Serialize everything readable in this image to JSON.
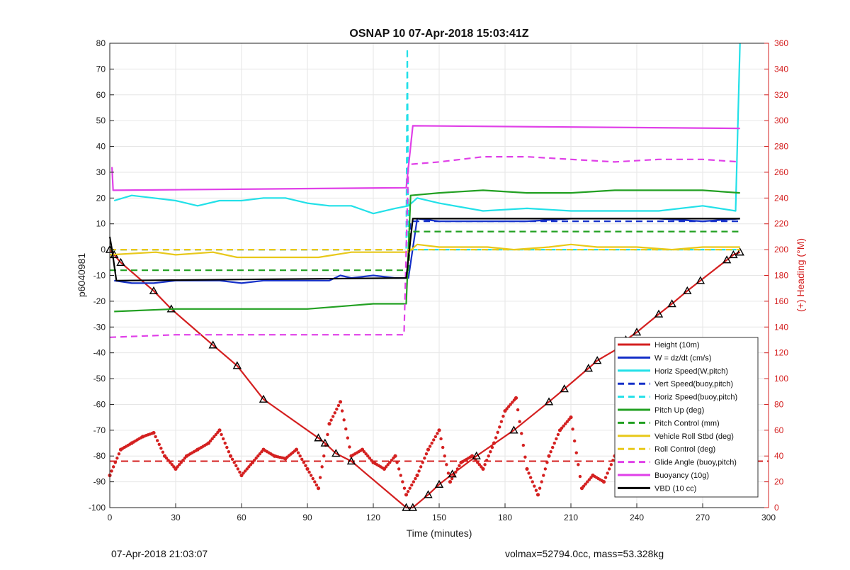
{
  "footer": {
    "left": "07-Apr-2018 21:03:07",
    "right": "volmax=52794.0cc, mass=53.328kg"
  },
  "chart_data": {
    "type": "line",
    "title": "OSNAP 10 07-Apr-2018 15:03:41Z",
    "xlabel": "Time (minutes)",
    "ylabel": "p6040981",
    "ylabel_right": "(+) Heading (°M)",
    "xlim": [
      0,
      300
    ],
    "ylim": [
      -100,
      80
    ],
    "ylim_right": [
      0,
      360
    ],
    "xticks": [
      0,
      30,
      60,
      90,
      120,
      150,
      180,
      210,
      240,
      270,
      300
    ],
    "yticks": [
      -100,
      -90,
      -80,
      -70,
      -60,
      -50,
      -40,
      -30,
      -20,
      -10,
      0,
      10,
      20,
      30,
      40,
      50,
      60,
      70,
      80
    ],
    "yticks_right": [
      0,
      20,
      40,
      60,
      80,
      100,
      120,
      140,
      160,
      180,
      200,
      220,
      240,
      260,
      280,
      300,
      320,
      340,
      360
    ],
    "grid": true,
    "legend_position": "bottom-right",
    "series": [
      {
        "name": "Height (10m)",
        "color": "#d42020",
        "style": "solid",
        "markers": "triangles",
        "x": [
          0,
          2,
          5,
          20,
          28,
          47,
          58,
          70,
          95,
          98,
          103,
          110,
          135,
          138,
          145,
          150,
          156,
          167,
          184,
          200,
          207,
          218,
          222,
          232,
          235,
          240,
          250,
          256,
          263,
          269,
          281,
          284,
          287
        ],
        "y": [
          0,
          -2,
          -5,
          -16,
          -23,
          -37,
          -45,
          -58,
          -73,
          -75,
          -79,
          -82,
          -100,
          -100,
          -95,
          -91,
          -87,
          -80,
          -70,
          -59,
          -54,
          -46,
          -43,
          -38,
          -35,
          -32,
          -25,
          -21,
          -16,
          -12,
          -4,
          -2,
          -1
        ]
      },
      {
        "name": "W = dz/dt (cm/s)",
        "color": "#1530c8",
        "style": "solid",
        "x": [
          2,
          10,
          20,
          30,
          40,
          50,
          60,
          70,
          80,
          90,
          100,
          105,
          110,
          120,
          130,
          136,
          140,
          150,
          170,
          190,
          210,
          230,
          250,
          270,
          287
        ],
        "y": [
          -12,
          -13,
          -13,
          -12,
          -12,
          -12,
          -13,
          -12,
          -12,
          -12,
          -12,
          -10,
          -11,
          -10,
          -11,
          -11,
          12,
          11,
          11,
          11,
          12,
          12,
          12,
          11,
          12
        ]
      },
      {
        "name": "Horiz Speed(W,pitch)",
        "color": "#22e0e8",
        "style": "solid",
        "x": [
          2,
          10,
          20,
          30,
          40,
          50,
          60,
          70,
          80,
          90,
          100,
          110,
          120,
          130,
          136,
          140,
          150,
          170,
          190,
          210,
          230,
          250,
          270,
          285,
          287
        ],
        "y": [
          19,
          21,
          20,
          19,
          17,
          19,
          19,
          20,
          20,
          18,
          17,
          17,
          14,
          16,
          17,
          20,
          18,
          15,
          16,
          15,
          15,
          15,
          17,
          15,
          80
        ]
      },
      {
        "name": "Vert Speed(buoy,pitch)",
        "color": "#1530c8",
        "style": "dashed",
        "x": [
          0,
          136,
          137,
          287
        ],
        "y": [
          0,
          0,
          11,
          11
        ]
      },
      {
        "name": "Horiz Speed(buoy,pitch)",
        "color": "#22e0e8",
        "style": "dashed",
        "x": [
          0,
          135,
          135.5,
          136,
          287
        ],
        "y": [
          0,
          0,
          78,
          0,
          0
        ]
      },
      {
        "name": "Pitch Up (deg)",
        "color": "#22a022",
        "style": "solid",
        "x": [
          2,
          30,
          60,
          90,
          105,
          120,
          135,
          137,
          150,
          170,
          190,
          210,
          230,
          250,
          270,
          287
        ],
        "y": [
          -24,
          -23,
          -23,
          -23,
          -22,
          -21,
          -21,
          21,
          22,
          23,
          22,
          22,
          23,
          23,
          23,
          22
        ]
      },
      {
        "name": "Pitch Control (mm)",
        "color": "#22a022",
        "style": "dashed",
        "x": [
          0,
          136,
          137,
          287
        ],
        "y": [
          -8,
          -8,
          7,
          7
        ]
      },
      {
        "name": "Vehicle Roll Stbd (deg)",
        "color": "#e8c81a",
        "style": "solid",
        "x": [
          0,
          21,
          30,
          47,
          58,
          95,
          110,
          136,
          140,
          150,
          172,
          184,
          200,
          210,
          222,
          232,
          240,
          256,
          270,
          281,
          287
        ],
        "y": [
          -2,
          -1,
          -2,
          -1,
          -3,
          -3,
          -1,
          -1,
          2,
          1,
          1,
          0,
          1,
          2,
          1,
          1,
          1,
          0,
          1,
          1,
          1
        ]
      },
      {
        "name": "Roll Control (deg)",
        "color": "#e8c81a",
        "style": "dashed",
        "x": [
          0,
          136,
          137,
          287
        ],
        "y": [
          0,
          0,
          0,
          0
        ]
      },
      {
        "name": "Glide Angle (buoy,pitch)",
        "color": "#e040e8",
        "style": "dashed",
        "x": [
          0,
          30,
          60,
          90,
          120,
          134,
          136,
          150,
          170,
          190,
          210,
          230,
          250,
          270,
          287
        ],
        "y": [
          -34,
          -33,
          -33,
          -33,
          -33,
          -33,
          33,
          34,
          36,
          36,
          35,
          34,
          35,
          35,
          34
        ]
      },
      {
        "name": "Buoyancy (10g)",
        "color": "#e040e8",
        "style": "solid",
        "x": [
          1,
          1.5,
          135,
          138,
          287
        ],
        "y": [
          32,
          23,
          24,
          48,
          47
        ]
      },
      {
        "name": "VBD (10 cc)",
        "color": "#000000",
        "style": "solid",
        "x": [
          0,
          1,
          3,
          135,
          138,
          287
        ],
        "y": [
          5,
          0,
          -12,
          -11,
          12,
          12
        ]
      }
    ],
    "heading_series": {
      "name": "(+) Heading (°M)",
      "color": "#d42020",
      "axis": "right",
      "style": "dots",
      "x": [
        0,
        5,
        10,
        15,
        20,
        25,
        30,
        35,
        40,
        45,
        50,
        55,
        60,
        65,
        70,
        75,
        80,
        85,
        90,
        95,
        100,
        105,
        110,
        115,
        120,
        125,
        130,
        135,
        140,
        145,
        150,
        155,
        160,
        165,
        170,
        175,
        180,
        185,
        190,
        195,
        200,
        205,
        210,
        215,
        220,
        225,
        230,
        235,
        240,
        245,
        250,
        255,
        260,
        265,
        270,
        275,
        280,
        285
      ],
      "y": [
        25,
        45,
        50,
        55,
        58,
        40,
        30,
        40,
        45,
        50,
        60,
        40,
        25,
        35,
        45,
        40,
        38,
        45,
        30,
        15,
        65,
        82,
        40,
        45,
        35,
        30,
        40,
        10,
        25,
        45,
        60,
        20,
        35,
        40,
        30,
        50,
        75,
        85,
        30,
        10,
        40,
        60,
        70,
        15,
        25,
        20,
        40,
        30,
        35,
        10,
        25,
        40,
        20,
        10,
        35,
        20,
        30,
        15
      ]
    },
    "heading_dashed_line": 36
  }
}
